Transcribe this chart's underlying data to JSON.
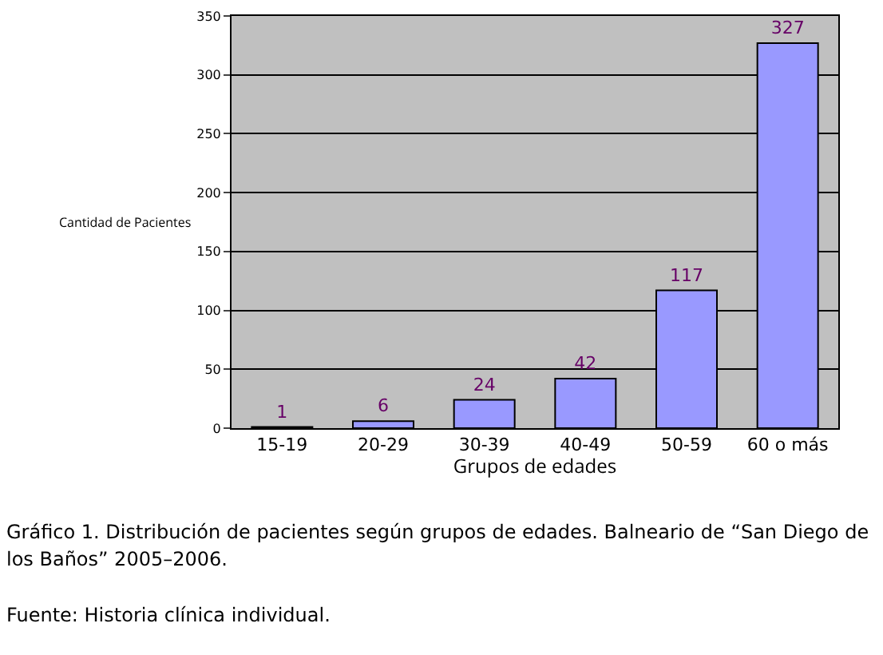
{
  "chart_data": {
    "type": "bar",
    "xlabel": "Grupos de edades",
    "ylabel": "Cantidad de Pacientes",
    "categories": [
      "15-19",
      "20-29",
      "30-39",
      "40-49",
      "50-59",
      "60 o más"
    ],
    "values": [
      1,
      6,
      24,
      42,
      117,
      327
    ],
    "color": "#9999ff",
    "data_labels": true,
    "ylim": [
      0,
      350
    ],
    "yticks": [
      0,
      50,
      100,
      150,
      200,
      250,
      300,
      350
    ],
    "grid": "y",
    "annotations": [
      "Gráfico 1. Distribución de pacientes según grupos de edades. Balneario de “San Diego de los Baños” 2005–2006.",
      "Fuente: Historia clínica individual."
    ]
  }
}
